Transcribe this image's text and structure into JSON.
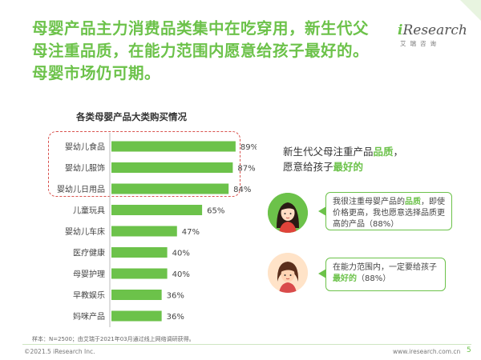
{
  "headline": "母婴产品主力消费品类集中在吃穿用，新生代父母注重品质，在能力范围内愿意给孩子最好的。母婴市场仍可期。",
  "logo": {
    "main_i": "i",
    "main_rest": "Research",
    "sub": "艾瑞咨询"
  },
  "chart_data": {
    "type": "bar",
    "orientation": "horizontal",
    "title": "各类母婴产品大类购买情况",
    "categories": [
      "婴幼儿食品",
      "婴幼儿服饰",
      "婴幼儿日用品",
      "儿童玩具",
      "婴幼儿车床",
      "医疗健康",
      "母婴护理",
      "早教娱乐",
      "妈咪产品"
    ],
    "values": [
      89,
      87,
      84,
      65,
      47,
      40,
      40,
      36,
      36
    ],
    "value_labels": [
      "89%",
      "87%",
      "84%",
      "65%",
      "47%",
      "40%",
      "40%",
      "36%",
      "36%"
    ],
    "xlim": [
      0,
      100
    ],
    "highlighted": [
      "婴幼儿食品",
      "婴幼儿服饰",
      "婴幼儿日用品"
    ],
    "bar_color": "#6cc24a",
    "highlight_border_color": "#d9534f",
    "grid": false
  },
  "note": {
    "line1_pre": "新生代父母注重产品",
    "line1_bold": "品质",
    "line1_post": "，",
    "line2_pre": "愿意给孩子",
    "line2_bold": "最好的"
  },
  "quote1": {
    "pre": "我很注重母婴产品的",
    "bold": "品质",
    "post": "，即使价格更高，我也愿意选择品质更高的产品（88%）"
  },
  "quote2": {
    "pre": "在能力范围内，一定要给孩子",
    "bold": "最好的",
    "post": "（88%）"
  },
  "footnote": "样本：N=2500；由艾瑞于2021年03月通过线上网络调研获得。",
  "copyright": "©2021.5 iResearch Inc.",
  "website": "www.iresearch.com.cn",
  "page_number": "5",
  "colors": {
    "accent": "#6cc24a",
    "highlight": "#d9534f"
  }
}
